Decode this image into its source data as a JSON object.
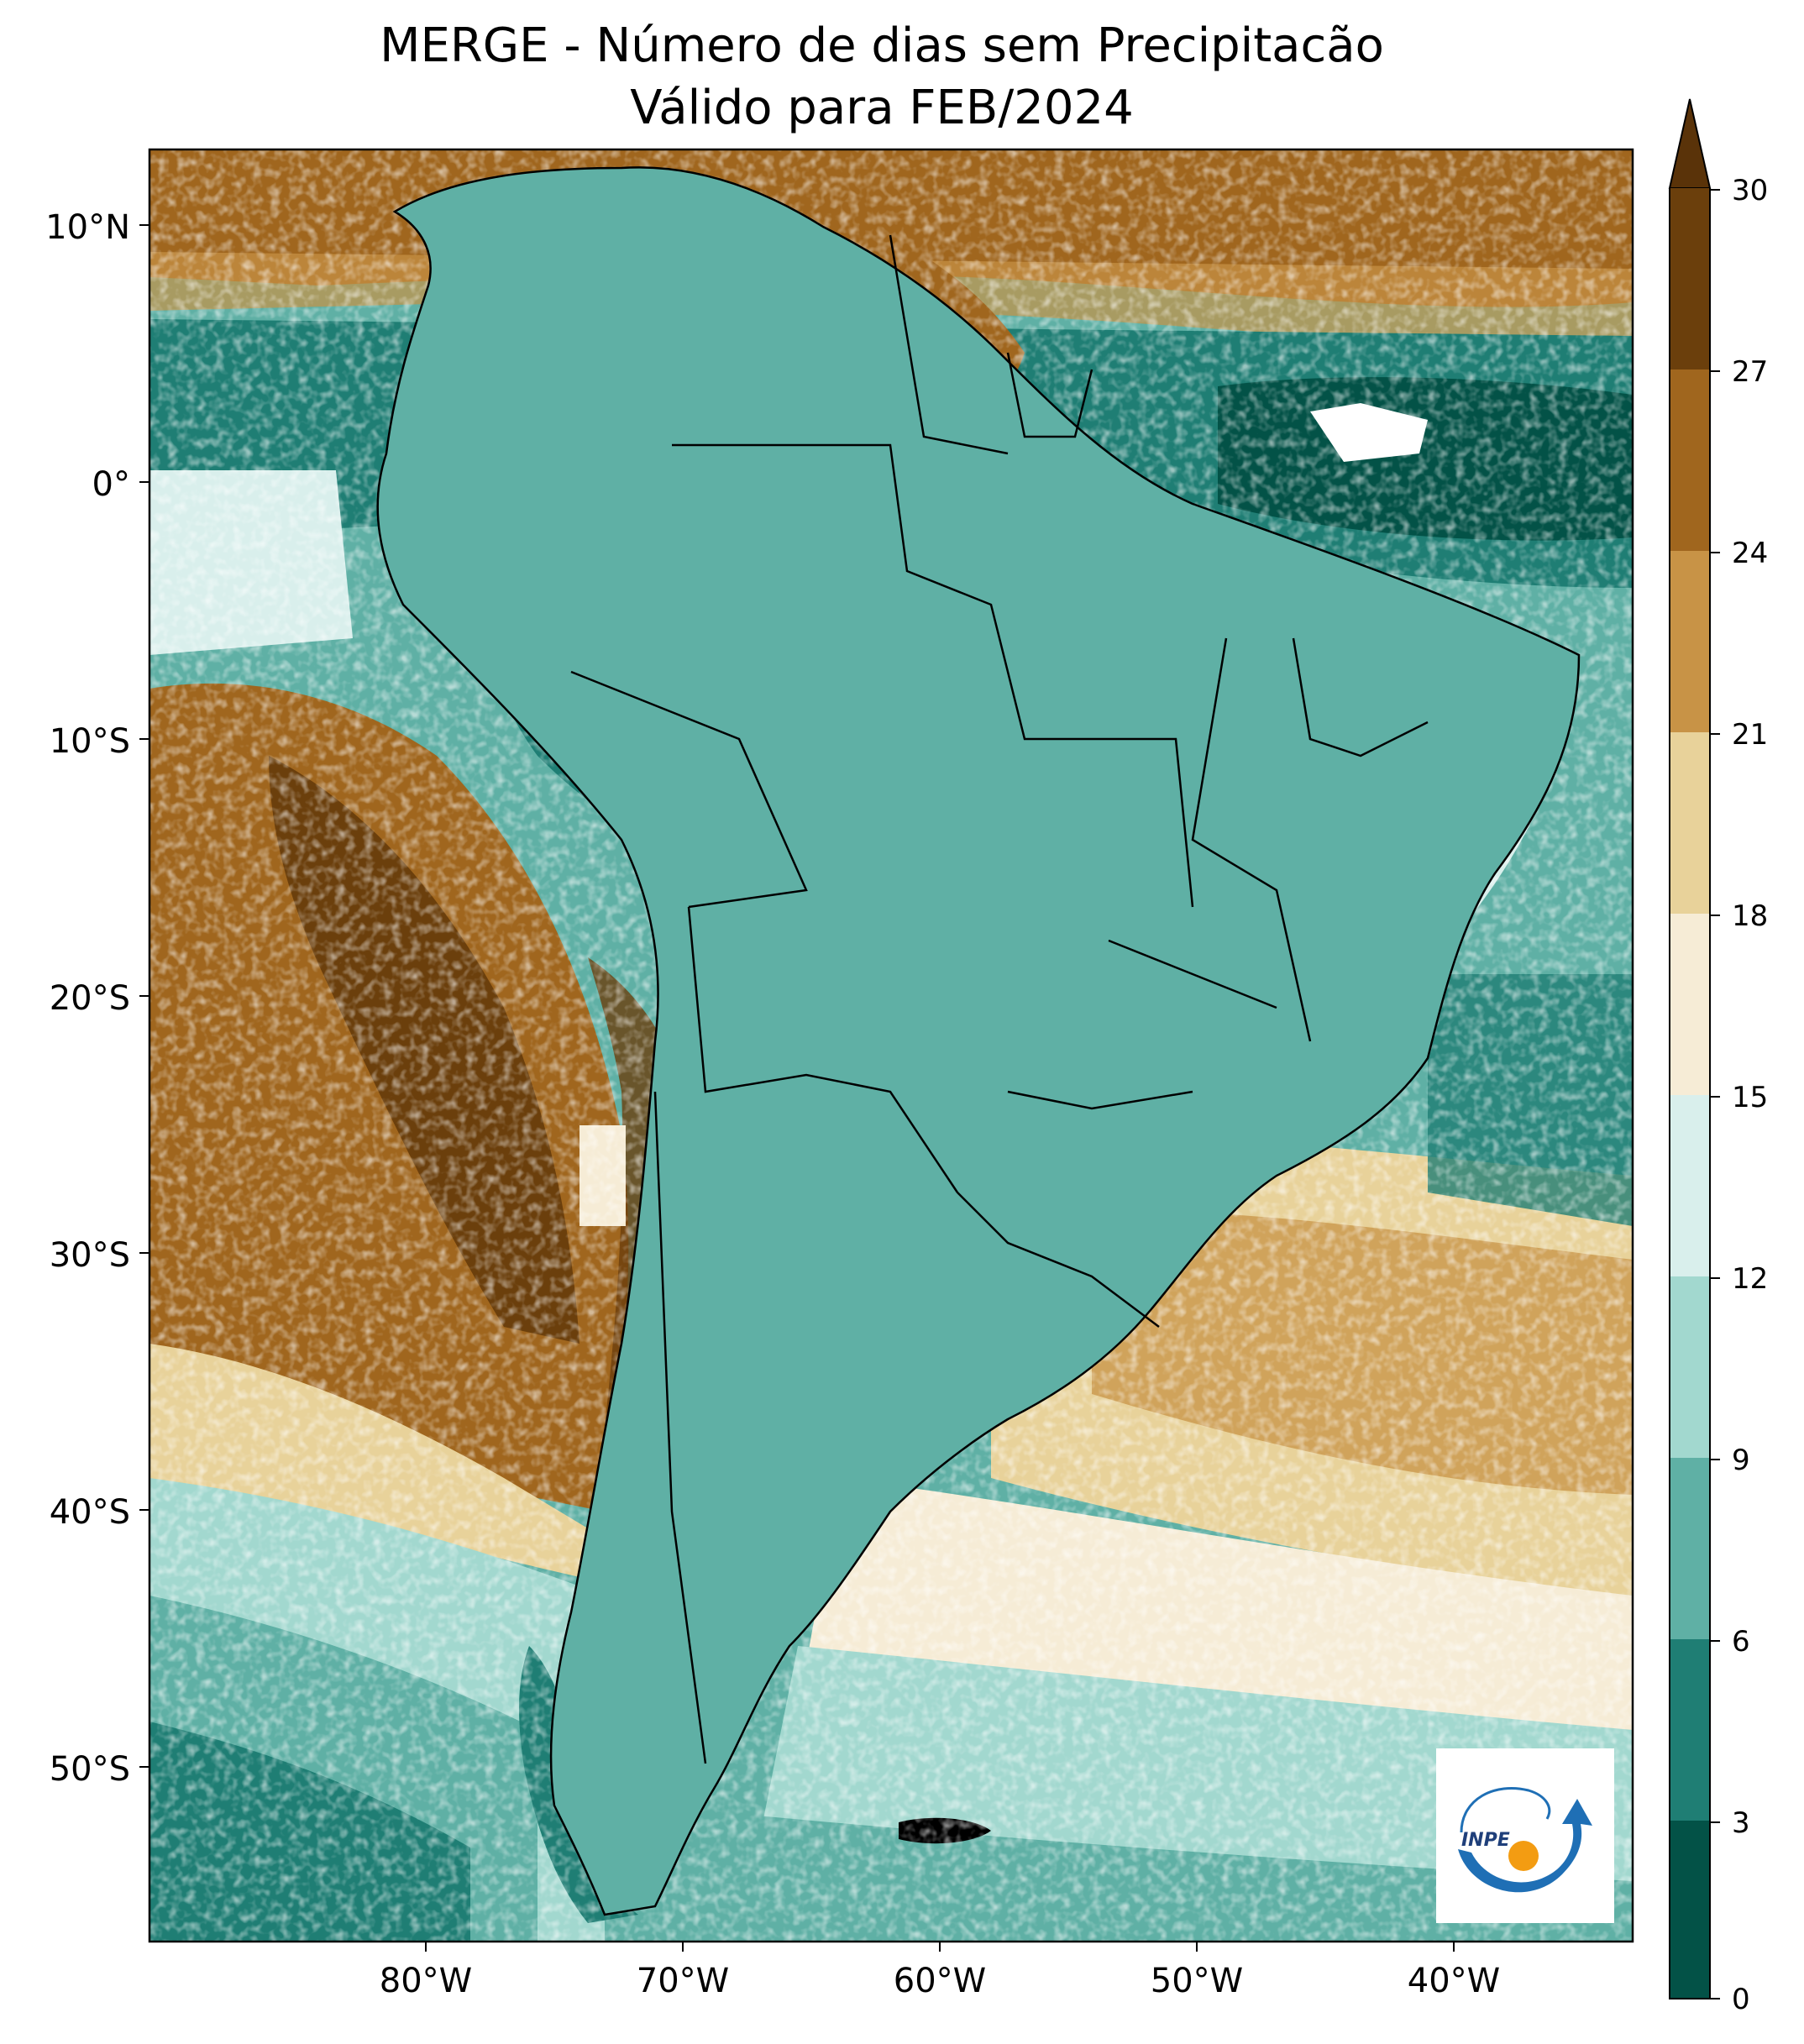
{
  "title": {
    "line1": "MERGE - Número de dias sem Precipitacão",
    "line2": "Válido para FEB/2024"
  },
  "axes": {
    "lat_labels": [
      "10°N",
      "0°",
      "10°S",
      "20°S",
      "30°S",
      "40°S",
      "50°S"
    ],
    "lon_labels": [
      "80°W",
      "70°W",
      "60°W",
      "50°W",
      "40°W"
    ]
  },
  "colorbar": {
    "ticks": [
      "30",
      "27",
      "24",
      "21",
      "18",
      "15",
      "12",
      "9",
      "6",
      "3",
      "0"
    ],
    "colors_top_to_bottom": [
      "#6b3f0c",
      "#a0661e",
      "#c89346",
      "#e8d29a",
      "#f6ecd6",
      "#d9efec",
      "#a2d8cf",
      "#5fb0a5",
      "#1f7e74",
      "#035247"
    ],
    "extend_color": "#5a3309"
  },
  "legend_colors": {
    "ocean_dry": "#a0661e",
    "land_dry": "#c89346",
    "humid": "#1f7e74",
    "very_humid": "#035247",
    "moderate": "#a2d8cf",
    "light": "#d9efec",
    "pale": "#f6ecd6",
    "tan": "#e8d29a",
    "border": "#000000"
  },
  "logo": {
    "text": "INPE",
    "blue": "#1f6fb5",
    "orange": "#f39c12"
  }
}
